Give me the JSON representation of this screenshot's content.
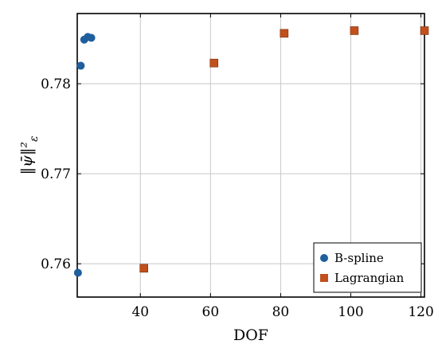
{
  "chart_data": {
    "type": "scatter",
    "xlabel": "DOF",
    "ylabel": "‖ψ̄‖²",
    "ylabel_subscript": "ε",
    "xlim": [
      22,
      121
    ],
    "ylim": [
      0.7563,
      0.7878
    ],
    "xticks": [
      40,
      60,
      80,
      100,
      120
    ],
    "yticks": [
      0.76,
      0.77,
      0.78
    ],
    "ytick_labels": [
      "0.76",
      "0.77",
      "0.78"
    ],
    "xtick_labels": [
      "40",
      "60",
      "80",
      "100",
      "120"
    ],
    "grid": true,
    "legend_position": "bottom-right",
    "series": [
      {
        "name": "B-spline",
        "marker": "circle",
        "color": "#1f5f9e",
        "x": [
          22.2,
          23.0,
          24.0,
          25.0,
          26.0
        ],
        "y": [
          0.759,
          0.782,
          0.7849,
          0.7852,
          0.7851
        ]
      },
      {
        "name": "Lagrangian",
        "marker": "square",
        "color": "#c1501d",
        "x": [
          41,
          61,
          81,
          101,
          121
        ],
        "y": [
          0.7595,
          0.7823,
          0.7856,
          0.7859,
          0.7859
        ]
      }
    ]
  }
}
